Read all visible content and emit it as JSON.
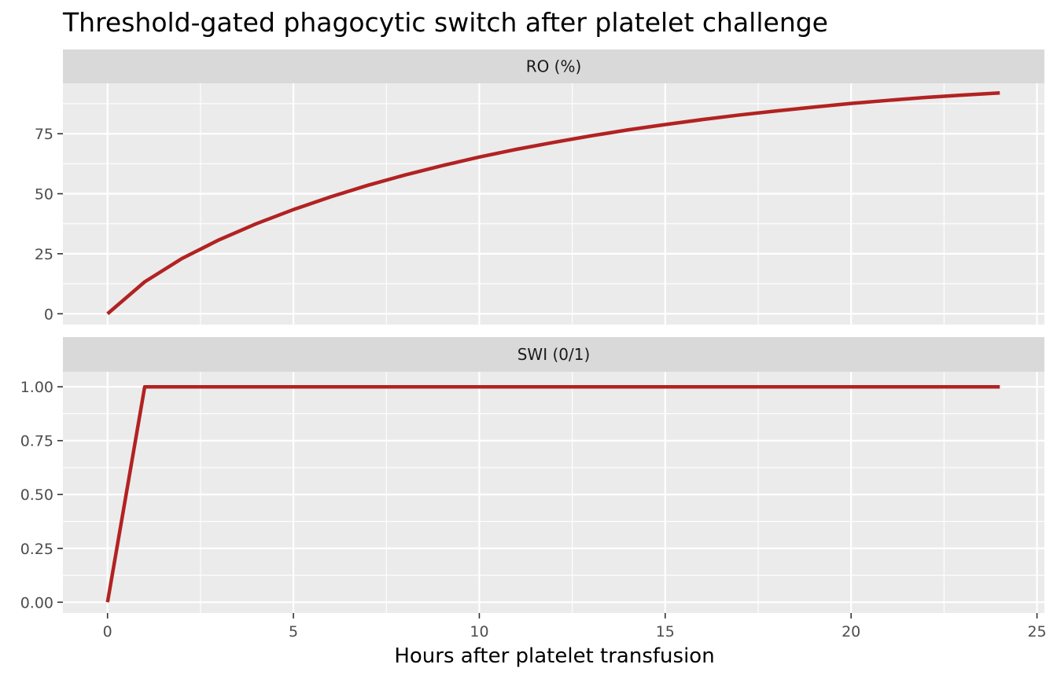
{
  "title": "Threshold-gated phagocytic switch after platelet challenge",
  "xlabel": "Hours after platelet transfusion",
  "chart_data": {
    "type": "line",
    "title": "Threshold-gated phagocytic switch after platelet challenge",
    "xlabel": "Hours after platelet transfusion",
    "ylabel": "",
    "line_color": "#b22222",
    "panel_background": "#ebebeb",
    "strip_background": "#d9d9d9",
    "grid": true,
    "legend": "none",
    "xlim": [
      -1.2,
      25.2
    ],
    "x_ticks": [
      0,
      5,
      10,
      15,
      20,
      25
    ],
    "x_tick_labels": [
      "0",
      "5",
      "10",
      "15",
      "20",
      "25"
    ],
    "facets": [
      {
        "strip_label": "RO (%)",
        "ylim": [
          -4.5,
          96
        ],
        "y_ticks": [
          0,
          25,
          50,
          75
        ],
        "y_tick_labels": [
          "0",
          "25",
          "50",
          "75"
        ],
        "x": [
          0,
          1,
          2,
          3,
          4,
          5,
          6,
          7,
          8,
          9,
          10,
          11,
          12,
          13,
          14,
          15,
          16,
          17,
          18,
          19,
          20,
          21,
          22,
          23,
          24
        ],
        "values": [
          0,
          13.3,
          23.0,
          30.8,
          37.5,
          43.4,
          48.7,
          53.5,
          57.8,
          61.7,
          65.3,
          68.5,
          71.4,
          74.1,
          76.6,
          78.8,
          80.9,
          82.8,
          84.5,
          86.1,
          87.6,
          88.9,
          90.1,
          91.1,
          92.0
        ]
      },
      {
        "strip_label": "SWI (0/1)",
        "ylim": [
          -0.05,
          1.07
        ],
        "y_ticks": [
          0,
          0.25,
          0.5,
          0.75,
          1
        ],
        "y_tick_labels": [
          "0.00",
          "0.25",
          "0.50",
          "0.75",
          "1.00"
        ],
        "x": [
          0,
          1,
          2,
          3,
          4,
          5,
          6,
          7,
          8,
          9,
          10,
          11,
          12,
          13,
          14,
          15,
          16,
          17,
          18,
          19,
          20,
          21,
          22,
          23,
          24
        ],
        "values": [
          0,
          1,
          1,
          1,
          1,
          1,
          1,
          1,
          1,
          1,
          1,
          1,
          1,
          1,
          1,
          1,
          1,
          1,
          1,
          1,
          1,
          1,
          1,
          1,
          1
        ]
      }
    ]
  }
}
